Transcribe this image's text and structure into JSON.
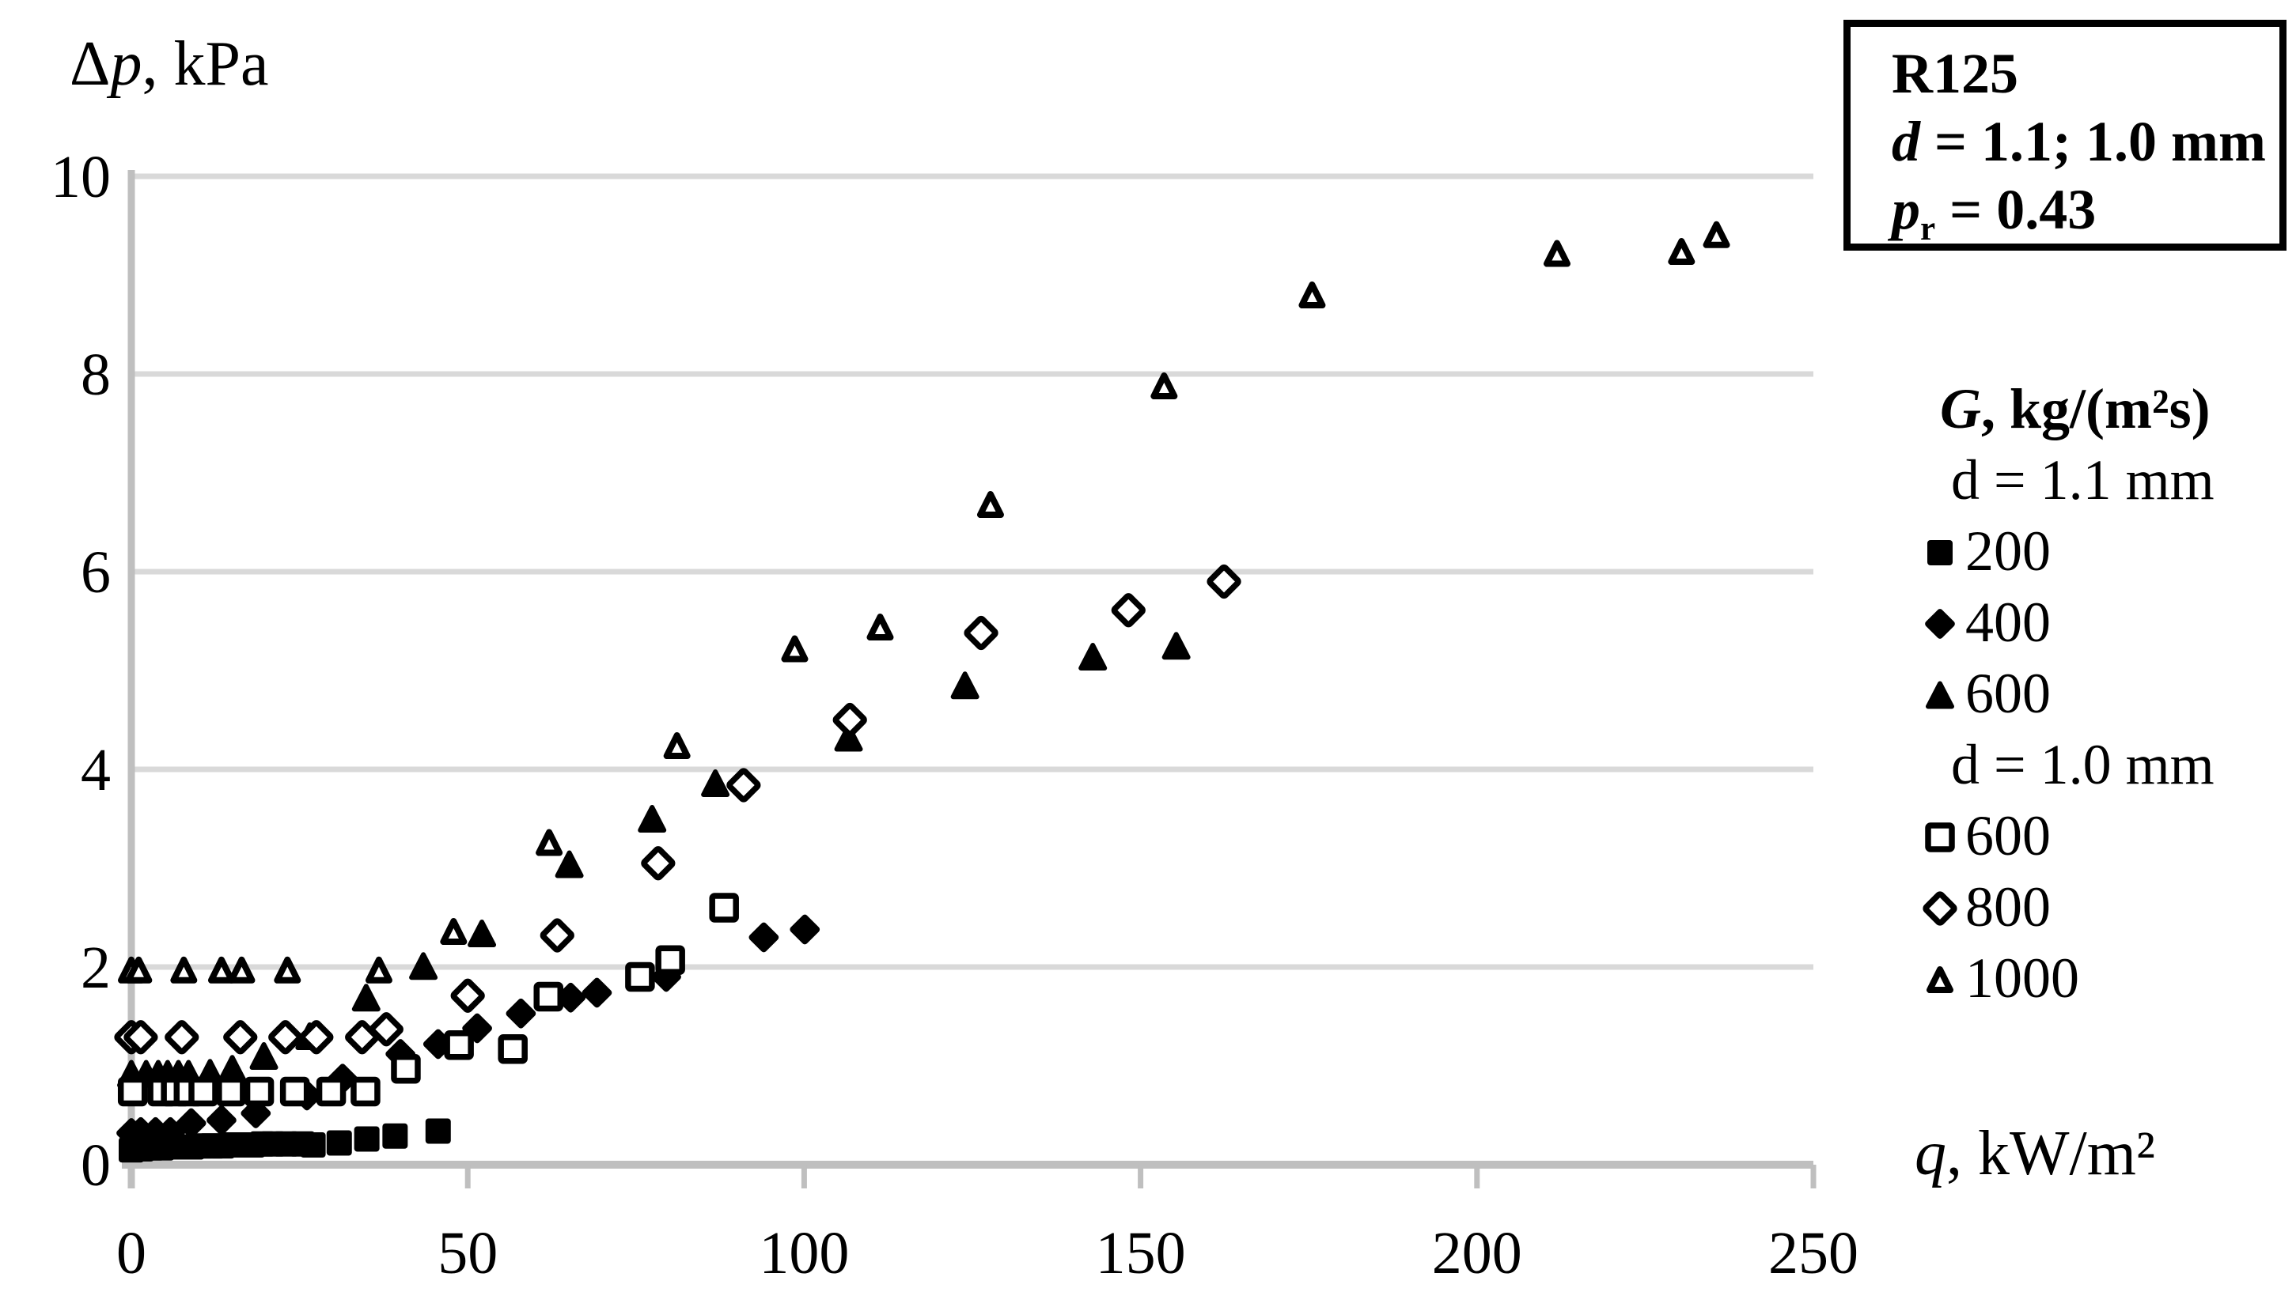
{
  "title_box": {
    "line1": "R125",
    "line2": {
      "d": "d",
      "rest": " = 1.1; 1.0 mm"
    },
    "line3": {
      "p": "p",
      "sub": "r",
      "rest": " = 0.43"
    }
  },
  "labels": {
    "y_title": {
      "delta": "Δ",
      "p": "p",
      "rest": ", kPa"
    },
    "x_title": {
      "q": "q",
      "rest": ", kW/m²"
    }
  },
  "legend": {
    "heading": {
      "g": "G",
      "rest": ", kg/(m²s)"
    },
    "group1": "d = 1.1 mm",
    "group2": "d = 1.0 mm",
    "items": [
      {
        "label": "200",
        "marker": "square",
        "variant": "filled"
      },
      {
        "label": "400",
        "marker": "diamond",
        "variant": "filled"
      },
      {
        "label": "600",
        "marker": "triangle",
        "variant": "filled"
      },
      {
        "label": "600",
        "marker": "square",
        "variant": "open"
      },
      {
        "label": "800",
        "marker": "diamond",
        "variant": "open"
      },
      {
        "label": "1000",
        "marker": "triangle",
        "variant": "open"
      }
    ]
  },
  "chart_data": {
    "type": "scatter",
    "title": "R125, d = 1.1; 1.0 mm, pr = 0.43",
    "xlabel": "q, kW/m2",
    "ylabel": "Delta p, kPa",
    "xlim": [
      0,
      250
    ],
    "ylim": [
      0,
      10
    ],
    "xticks": [
      0,
      50,
      100,
      150,
      200,
      250
    ],
    "yticks": [
      0,
      2,
      4,
      6,
      8,
      10
    ],
    "grid": "horizontal",
    "legend_position": "right",
    "colors": {
      "marker": "#000000",
      "gridline": "#d9d9d9",
      "axis": "#bfbfbf"
    },
    "series": [
      {
        "name": "200",
        "group": "d = 1.1 mm",
        "marker": "square",
        "variant": "filled",
        "points": [
          [
            0,
            0.15
          ],
          [
            1.5,
            0.16
          ],
          [
            3,
            0.17
          ],
          [
            4.5,
            0.17
          ],
          [
            6,
            0.18
          ],
          [
            7.5,
            0.18
          ],
          [
            9,
            0.18
          ],
          [
            10.5,
            0.19
          ],
          [
            12,
            0.19
          ],
          [
            13.5,
            0.19
          ],
          [
            15,
            0.2
          ],
          [
            16.5,
            0.2
          ],
          [
            18,
            0.2
          ],
          [
            19.5,
            0.21
          ],
          [
            21,
            0.21
          ],
          [
            23,
            0.21
          ],
          [
            25.4,
            0.21
          ],
          [
            27,
            0.2
          ],
          [
            30.9,
            0.22
          ],
          [
            35,
            0.26
          ],
          [
            39.2,
            0.29
          ],
          [
            45.6,
            0.34
          ]
        ]
      },
      {
        "name": "400",
        "group": "d = 1.1 mm",
        "marker": "diamond",
        "variant": "filled",
        "points": [
          [
            0,
            0.32
          ],
          [
            1.4,
            0.33
          ],
          [
            3.6,
            0.33
          ],
          [
            5.8,
            0.33
          ],
          [
            8.9,
            0.42
          ],
          [
            13.4,
            0.45
          ],
          [
            18.5,
            0.52
          ],
          [
            26.1,
            0.7
          ],
          [
            31.4,
            0.87
          ],
          [
            40,
            1.12
          ],
          [
            45.6,
            1.22
          ],
          [
            51.4,
            1.38
          ],
          [
            57.9,
            1.53
          ],
          [
            65.3,
            1.69
          ],
          [
            69.2,
            1.74
          ],
          [
            79.5,
            1.9
          ],
          [
            94,
            2.3
          ],
          [
            100.1,
            2.38
          ]
        ]
      },
      {
        "name": "600",
        "group": "d = 1.1 mm",
        "marker": "triangle",
        "variant": "filled",
        "points": [
          [
            0,
            0.92
          ],
          [
            2.2,
            0.92
          ],
          [
            4,
            0.92
          ],
          [
            5.4,
            0.92
          ],
          [
            7,
            0.92
          ],
          [
            8.5,
            0.92
          ],
          [
            11.7,
            0.93
          ],
          [
            15,
            0.97
          ],
          [
            19.7,
            1.1
          ],
          [
            26.5,
            1.3
          ],
          [
            34.9,
            1.69
          ],
          [
            43.4,
            2.01
          ],
          [
            52.1,
            2.34
          ],
          [
            65.1,
            3.04
          ],
          [
            77.4,
            3.5
          ],
          [
            86.8,
            3.86
          ],
          [
            106.6,
            4.32
          ],
          [
            123.9,
            4.85
          ],
          [
            142.9,
            5.14
          ],
          [
            155.3,
            5.25
          ]
        ]
      },
      {
        "name": "600",
        "group": "d = 1.0 mm",
        "marker": "square",
        "variant": "open",
        "points": [
          [
            0.2,
            0.74
          ],
          [
            4.6,
            0.74
          ],
          [
            6.6,
            0.74
          ],
          [
            8.5,
            0.74
          ],
          [
            10.7,
            0.74
          ],
          [
            14.8,
            0.74
          ],
          [
            19,
            0.74
          ],
          [
            24.3,
            0.74
          ],
          [
            29.7,
            0.74
          ],
          [
            34.8,
            0.74
          ],
          [
            40.8,
            0.97
          ],
          [
            48.7,
            1.21
          ],
          [
            56.7,
            1.17
          ],
          [
            62,
            1.7
          ],
          [
            75.6,
            1.9
          ],
          [
            80.1,
            2.07
          ],
          [
            88.1,
            2.6
          ]
        ]
      },
      {
        "name": "800",
        "group": "d = 1.0 mm",
        "marker": "diamond",
        "variant": "open",
        "points": [
          [
            0,
            1.29
          ],
          [
            1.4,
            1.29
          ],
          [
            7.5,
            1.29
          ],
          [
            16.2,
            1.29
          ],
          [
            22.9,
            1.29
          ],
          [
            27.5,
            1.29
          ],
          [
            34.3,
            1.29
          ],
          [
            37.9,
            1.37
          ],
          [
            50,
            1.71
          ],
          [
            63.3,
            2.32
          ],
          [
            78.3,
            3.05
          ],
          [
            91,
            3.84
          ],
          [
            106.8,
            4.5
          ],
          [
            126.3,
            5.38
          ],
          [
            148.2,
            5.61
          ],
          [
            162.4,
            5.9
          ]
        ]
      },
      {
        "name": "1000",
        "group": "d = 1.0 mm",
        "marker": "triangle",
        "variant": "open",
        "points": [
          [
            0,
            1.97
          ],
          [
            1.1,
            1.97
          ],
          [
            7.8,
            1.97
          ],
          [
            13.4,
            1.97
          ],
          [
            16.4,
            1.97
          ],
          [
            23.2,
            1.97
          ],
          [
            36.8,
            1.97
          ],
          [
            47.9,
            2.36
          ],
          [
            62.1,
            3.26
          ],
          [
            81.1,
            4.24
          ],
          [
            98.6,
            5.22
          ],
          [
            111.3,
            5.44
          ],
          [
            127.7,
            6.68
          ],
          [
            153.5,
            7.88
          ],
          [
            175.5,
            8.8
          ],
          [
            211.9,
            9.22
          ],
          [
            230.4,
            9.24
          ],
          [
            235.6,
            9.41
          ]
        ]
      }
    ]
  }
}
